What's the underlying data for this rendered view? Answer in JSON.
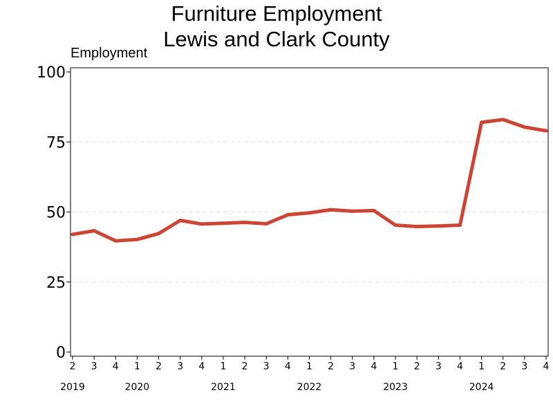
{
  "title_line1": "Furniture Employment",
  "title_line2": "Lewis and Clark County",
  "chart_data": {
    "type": "line",
    "title": "Furniture Employment Lewis and Clark County",
    "ylabel": "Employment",
    "xlabel": "",
    "ylim": [
      0,
      100
    ],
    "yticks": [
      0,
      25,
      50,
      75,
      100
    ],
    "grid": "horizontal dashed",
    "color": "#cc4433",
    "x_quarters": [
      "2",
      "3",
      "4",
      "1",
      "2",
      "3",
      "4",
      "1",
      "2",
      "3",
      "4",
      "1",
      "2",
      "3",
      "4",
      "1",
      "2",
      "3",
      "4",
      "1",
      "2",
      "3",
      "4"
    ],
    "x_years": [
      {
        "label": "2019",
        "at_index": 0
      },
      {
        "label": "2020",
        "at_index": 3
      },
      {
        "label": "2021",
        "at_index": 7
      },
      {
        "label": "2022",
        "at_index": 11
      },
      {
        "label": "2023",
        "at_index": 15
      },
      {
        "label": "2024",
        "at_index": 19
      }
    ],
    "series": [
      {
        "values": [
          42,
          43.3,
          39.7,
          40.2,
          42.3,
          47,
          45.7,
          46,
          46.3,
          45.8,
          49,
          49.7,
          50.8,
          50.3,
          50.5,
          45.3,
          44.8,
          45,
          45.3,
          82,
          83,
          80.3,
          79
        ]
      }
    ]
  }
}
